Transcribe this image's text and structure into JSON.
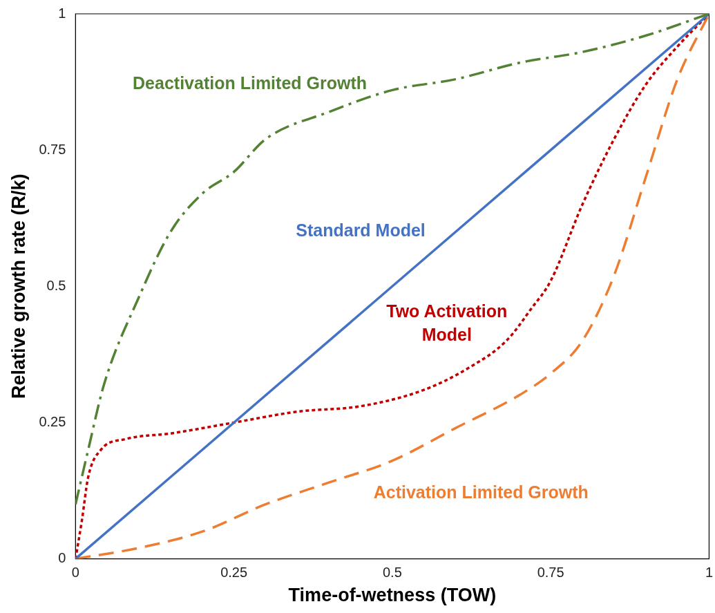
{
  "chart_data": {
    "type": "line",
    "xlabel": "Time-of-wetness (TOW)",
    "ylabel": "Relative growth rate (R/k)",
    "xlim": [
      0,
      1
    ],
    "ylim": [
      0,
      1
    ],
    "xticks": [
      0,
      0.25,
      0.5,
      0.75,
      1
    ],
    "yticks": [
      0,
      0.25,
      0.5,
      0.75,
      1
    ],
    "grid": false,
    "legend": false,
    "marker": "none",
    "series": [
      {
        "name": "Deactivation Limited Growth",
        "color": "#548235",
        "line_style": "dashdot",
        "x": [
          0,
          0.02,
          0.045,
          0.1,
          0.15,
          0.2,
          0.25,
          0.3,
          0.4,
          0.5,
          0.6,
          0.7,
          0.8,
          0.9,
          1
        ],
        "values": [
          0.1,
          0.2,
          0.32,
          0.48,
          0.6,
          0.67,
          0.71,
          0.77,
          0.82,
          0.86,
          0.88,
          0.91,
          0.93,
          0.96,
          1
        ]
      },
      {
        "name": "Standard Model",
        "color": "#4472c4",
        "line_style": "solid",
        "x": [
          0,
          1
        ],
        "values": [
          0,
          1
        ]
      },
      {
        "name": "Two Activation Model",
        "color": "#c00000",
        "line_style": "dotted",
        "x": [
          0,
          0.01,
          0.02,
          0.04,
          0.08,
          0.15,
          0.25,
          0.35,
          0.45,
          0.55,
          0.62,
          0.68,
          0.72,
          0.75,
          0.8,
          0.85,
          0.9,
          0.95,
          1
        ],
        "values": [
          0,
          0.07,
          0.15,
          0.2,
          0.22,
          0.23,
          0.25,
          0.27,
          0.28,
          0.31,
          0.35,
          0.4,
          0.46,
          0.51,
          0.65,
          0.77,
          0.87,
          0.94,
          1
        ]
      },
      {
        "name": "Activation Limited Growth",
        "color": "#ed7d31",
        "line_style": "dashed",
        "x": [
          0,
          0.1,
          0.2,
          0.3,
          0.4,
          0.5,
          0.6,
          0.7,
          0.75,
          0.8,
          0.85,
          0.9,
          0.95,
          1
        ],
        "values": [
          0,
          0.02,
          0.05,
          0.1,
          0.14,
          0.18,
          0.24,
          0.3,
          0.34,
          0.4,
          0.52,
          0.7,
          0.88,
          1
        ]
      }
    ]
  }
}
